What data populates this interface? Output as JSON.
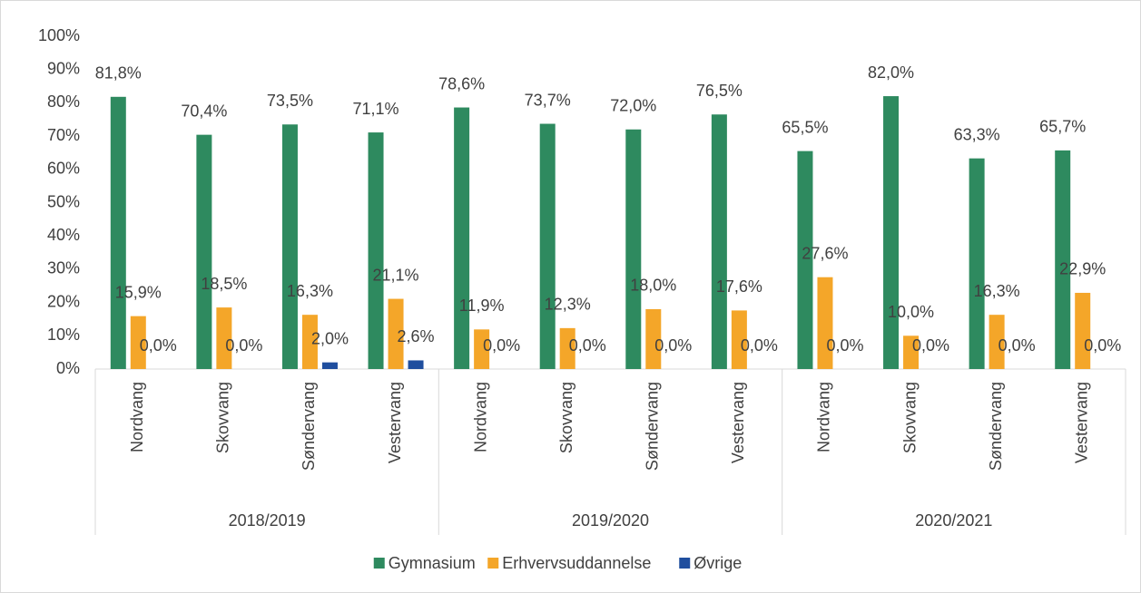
{
  "chart_data": {
    "type": "bar",
    "groups": [
      {
        "label": "2018/2019",
        "categories": [
          "Nordvang",
          "Skovvang",
          "Søndervang",
          "Vestervang"
        ]
      },
      {
        "label": "2019/2020",
        "categories": [
          "Nordvang",
          "Skovvang",
          "Søndervang",
          "Vestervang"
        ]
      },
      {
        "label": "2020/2021",
        "categories": [
          "Nordvang",
          "Skovvang",
          "Søndervang",
          "Vestervang"
        ]
      }
    ],
    "series": [
      {
        "name": "Gymnasium",
        "color": "#2e8a5f",
        "values": [
          81.8,
          70.4,
          73.5,
          71.1,
          78.6,
          73.7,
          72.0,
          76.5,
          65.5,
          82.0,
          63.3,
          65.7
        ],
        "value_labels": [
          "81,8%",
          "70,4%",
          "73,5%",
          "71,1%",
          "78,6%",
          "73,7%",
          "72,0%",
          "76,5%",
          "65,5%",
          "82,0%",
          "63,3%",
          "65,7%"
        ]
      },
      {
        "name": "Erhvervsuddannelse",
        "color": "#f4a629",
        "values": [
          15.9,
          18.5,
          16.3,
          21.1,
          11.9,
          12.3,
          18.0,
          17.6,
          27.6,
          10.0,
          16.3,
          22.9
        ],
        "value_labels": [
          "15,9%",
          "18,5%",
          "16,3%",
          "21,1%",
          "11,9%",
          "12,3%",
          "18,0%",
          "17,6%",
          "27,6%",
          "10,0%",
          "16,3%",
          "22,9%"
        ]
      },
      {
        "name": "Øvrige",
        "color": "#1f4e9e",
        "values": [
          0.0,
          0.0,
          2.0,
          2.6,
          0.0,
          0.0,
          0.0,
          0.0,
          0.0,
          0.0,
          0.0,
          0.0
        ],
        "value_labels": [
          "0,0%",
          "0,0%",
          "2,0%",
          "2,6%",
          "0,0%",
          "0,0%",
          "0,0%",
          "0,0%",
          "0,0%",
          "0,0%",
          "0,0%",
          "0,0%"
        ]
      }
    ],
    "ylim": [
      0,
      100
    ],
    "yticks": [
      {
        "value": 0,
        "label": "0%"
      },
      {
        "value": 10,
        "label": "10%"
      },
      {
        "value": 20,
        "label": "20%"
      },
      {
        "value": 30,
        "label": "30%"
      },
      {
        "value": 40,
        "label": "40%"
      },
      {
        "value": 50,
        "label": "50%"
      },
      {
        "value": 60,
        "label": "60%"
      },
      {
        "value": 70,
        "label": "70%"
      },
      {
        "value": 80,
        "label": "80%"
      },
      {
        "value": 90,
        "label": "90%"
      },
      {
        "value": 100,
        "label": "100%"
      }
    ],
    "grid": false,
    "legend": "bottom"
  }
}
